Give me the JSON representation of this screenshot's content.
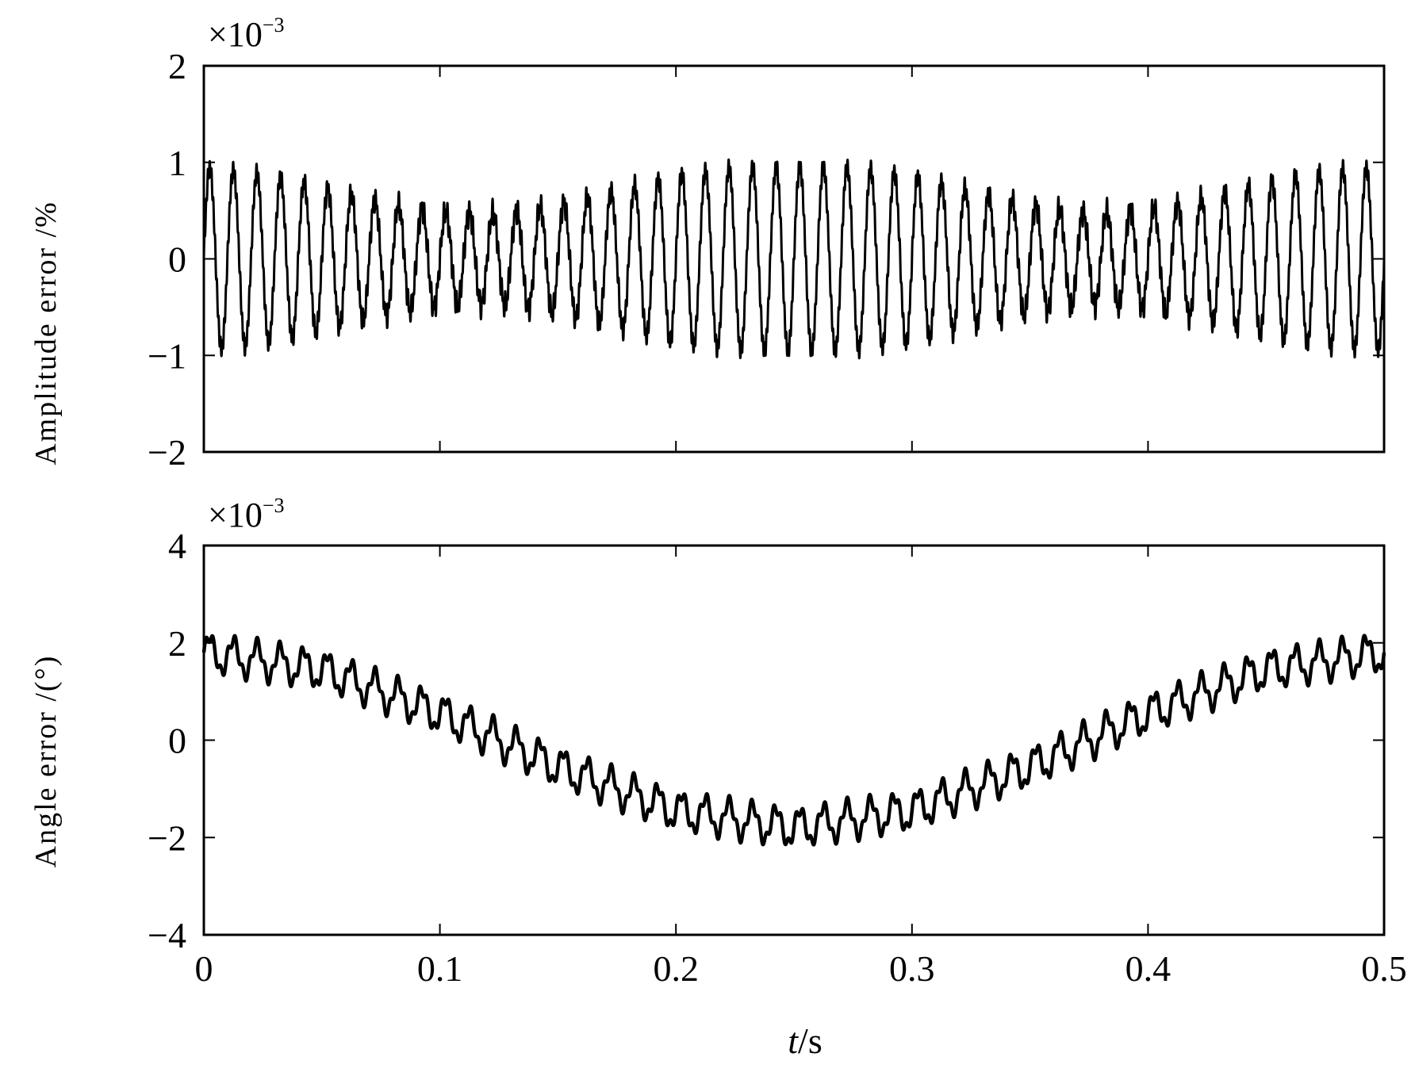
{
  "colors": {
    "line": "#000000",
    "background": "#ffffff"
  },
  "chart_data": [
    {
      "type": "line",
      "name": "top-panel",
      "ylabel": "Amplitude error /%",
      "multiplier": "×10",
      "exponent": "−3",
      "xlim": [
        0,
        0.5
      ],
      "ylim": [
        -2,
        2
      ],
      "xticks": [
        0,
        0.1,
        0.2,
        0.3,
        0.4,
        0.5
      ],
      "yticks": [
        -2,
        -1,
        0,
        1,
        2
      ],
      "ytick_labels": [
        "−2",
        "−1",
        "0",
        "1",
        "2"
      ],
      "grid": false,
      "series": [
        {
          "description": "dense oscillation (~100 Hz) around 0; envelope amplitude ~1 near t=0, 0.25, 0.5 and ~0.5 near t=0.125, 0.375",
          "t": [
            0,
            0.02,
            0.04,
            0.06,
            0.08,
            0.1,
            0.125,
            0.15,
            0.175,
            0.2,
            0.225,
            0.25,
            0.275,
            0.3,
            0.325,
            0.35,
            0.375,
            0.4,
            0.42,
            0.44,
            0.46,
            0.48,
            0.5
          ],
          "envelope": [
            1.0,
            0.95,
            0.85,
            0.72,
            0.6,
            0.52,
            0.5,
            0.6,
            0.75,
            0.92,
            1.0,
            1.0,
            1.0,
            0.92,
            0.75,
            0.6,
            0.5,
            0.55,
            0.65,
            0.78,
            0.9,
            0.98,
            1.0
          ]
        }
      ]
    },
    {
      "type": "line",
      "name": "bottom-panel",
      "ylabel": "Angle error /(°)",
      "multiplier": "×10",
      "exponent": "−3",
      "xlabel_italic": "t",
      "xlabel_rest": "/s",
      "xlim": [
        0,
        0.5
      ],
      "ylim": [
        -4,
        4
      ],
      "xticks": [
        0,
        0.1,
        0.2,
        0.3,
        0.4,
        0.5
      ],
      "xtick_labels": [
        "0",
        "0.1",
        "0.2",
        "0.3",
        "0.4",
        "0.5"
      ],
      "yticks": [
        -4,
        -2,
        0,
        2,
        4
      ],
      "ytick_labels": [
        "−4",
        "−2",
        "0",
        "2",
        "4"
      ],
      "grid": false,
      "series": [
        {
          "description": "slow cosine trend (~2 Hz) with small fast ripple (~100 Hz, amplitude ~0.35)",
          "t": [
            0,
            0.05,
            0.1,
            0.15,
            0.2,
            0.25,
            0.3,
            0.35,
            0.4,
            0.45,
            0.5
          ],
          "trend": [
            1.8,
            1.45,
            0.55,
            -0.55,
            -1.45,
            -1.8,
            -1.45,
            -0.55,
            0.55,
            1.45,
            1.8
          ],
          "ripple_amplitude": 0.35
        }
      ]
    }
  ]
}
